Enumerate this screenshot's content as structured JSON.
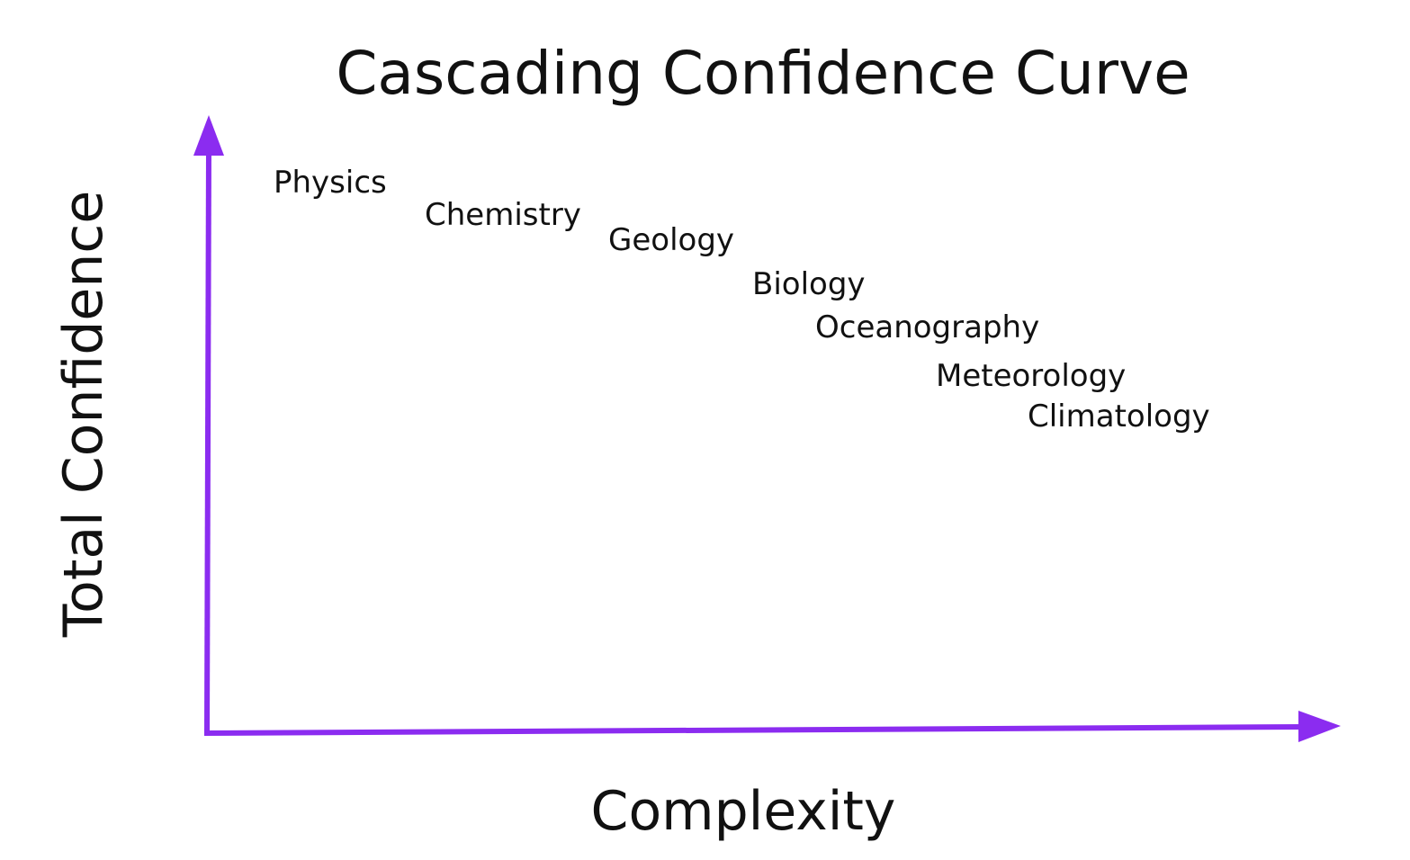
{
  "title": "Cascading Confidence Curve",
  "x_axis": {
    "label": "Complexity"
  },
  "y_axis": {
    "label": "Total Confidence"
  },
  "fields": [
    "Physics",
    "Chemistry",
    "Geology",
    "Biology",
    "Oceanography",
    "Meteorology",
    "Climatology"
  ]
}
